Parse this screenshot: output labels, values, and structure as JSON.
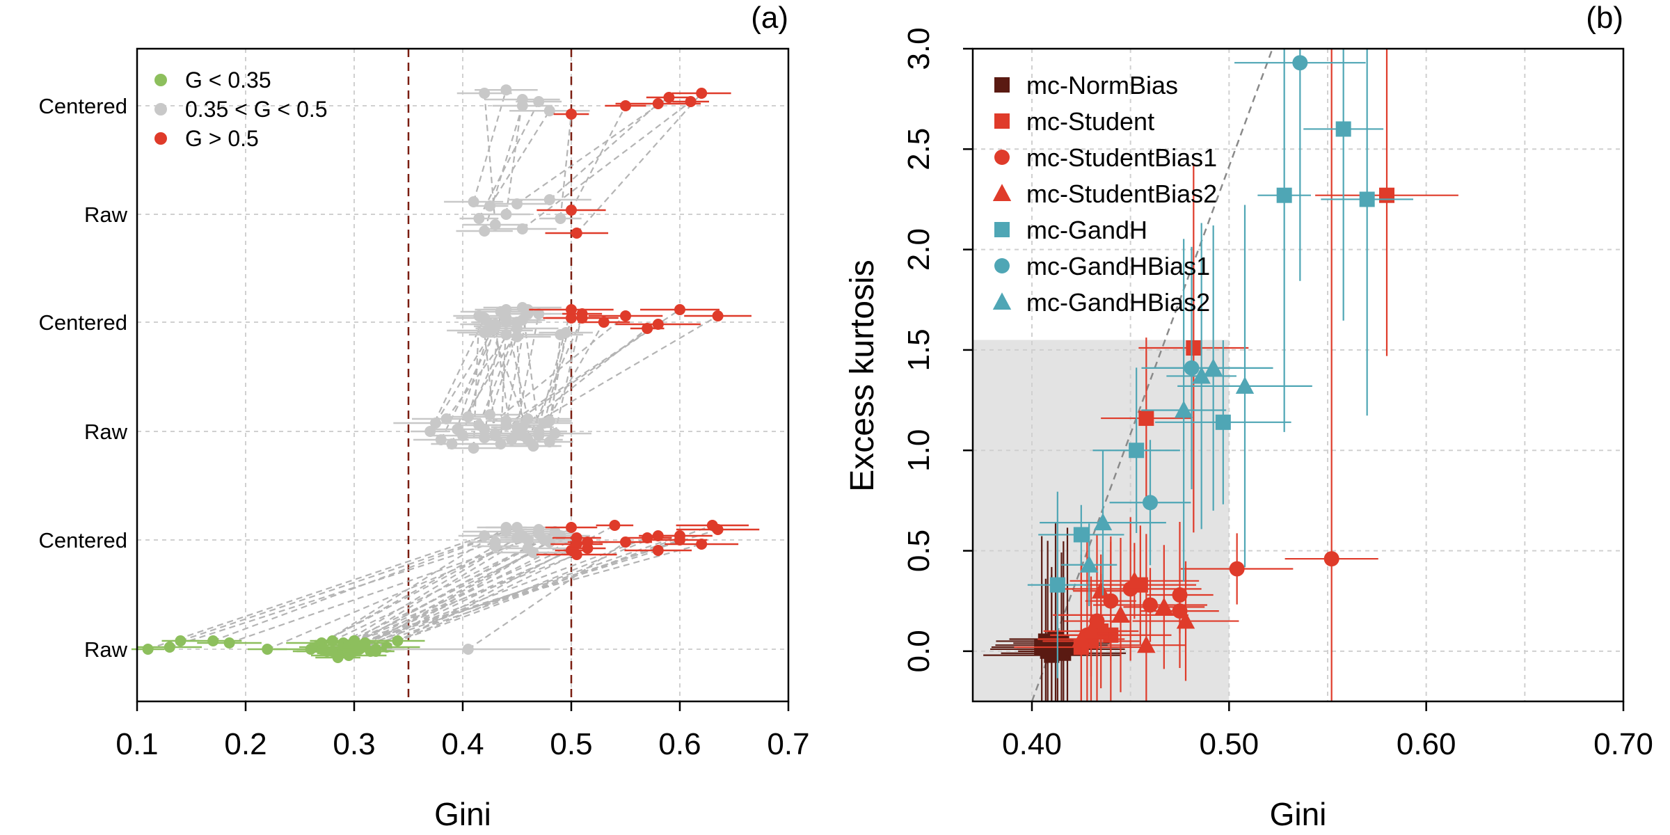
{
  "chart_data": [
    {
      "panel_label": "(a)",
      "type": "scatter",
      "xlabel": "Gini",
      "ylabel": "",
      "xlim": [
        0.1,
        0.7
      ],
      "xticks": [
        "0.1",
        "0.2",
        "0.3",
        "0.4",
        "0.5",
        "0.6",
        "0.7"
      ],
      "ytick_labels": [
        "Centered",
        "Raw",
        "Centered",
        "Raw",
        "Centered",
        "Raw"
      ],
      "vlines": [
        0.35,
        0.5
      ],
      "grid": true,
      "legend_position": "top-left",
      "legend": [
        {
          "label": "G < 0.35",
          "color": "#8dbf5d"
        },
        {
          "label": "0.35 < G < 0.5",
          "color": "#c8c8c8"
        },
        {
          "label": "G > 0.5",
          "color": "#df3b2a"
        }
      ],
      "groups": [
        {
          "rows": [
            "Raw",
            "Centered"
          ],
          "pairs": [
            [
              0.41,
              0.44,
              0.2,
              0.12
            ],
            [
              0.415,
              0.47,
              0.6,
              0.4
            ],
            [
              0.42,
              0.455,
              0.9,
              0.5
            ],
            [
              0.425,
              0.48,
              0.3,
              0.62
            ],
            [
              0.43,
              0.42,
              0.75,
              0.2
            ],
            [
              0.44,
              0.455,
              0.5,
              0.35
            ],
            [
              0.455,
              0.61,
              0.85,
              0.4
            ],
            [
              0.45,
              0.59,
              0.25,
              0.3
            ],
            [
              0.5,
              0.55,
              0.4,
              0.5
            ],
            [
              0.505,
              0.62,
              0.95,
              0.2
            ],
            [
              0.49,
              0.5,
              0.6,
              0.7
            ],
            [
              0.48,
              0.58,
              0.15,
              0.45
            ]
          ]
        },
        {
          "rows": [
            "Raw",
            "Centered"
          ],
          "pairs": [
            [
              0.37,
              0.42,
              0.5,
              0.4
            ],
            [
              0.375,
              0.43,
              0.3,
              0.6
            ],
            [
              0.38,
              0.44,
              0.7,
              0.2
            ],
            [
              0.385,
              0.45,
              0.2,
              0.5
            ],
            [
              0.39,
              0.425,
              0.8,
              0.7
            ],
            [
              0.395,
              0.46,
              0.45,
              0.3
            ],
            [
              0.4,
              0.43,
              0.6,
              0.55
            ],
            [
              0.405,
              0.44,
              0.15,
              0.8
            ],
            [
              0.41,
              0.415,
              0.9,
              0.35
            ],
            [
              0.415,
              0.45,
              0.35,
              0.65
            ],
            [
              0.42,
              0.435,
              0.65,
              0.25
            ],
            [
              0.425,
              0.455,
              0.1,
              0.45
            ],
            [
              0.43,
              0.42,
              0.55,
              0.75
            ],
            [
              0.435,
              0.44,
              0.8,
              0.5
            ],
            [
              0.44,
              0.46,
              0.25,
              0.2
            ],
            [
              0.445,
              0.43,
              0.7,
              0.6
            ],
            [
              0.45,
              0.47,
              0.4,
              0.3
            ],
            [
              0.455,
              0.45,
              0.6,
              0.85
            ],
            [
              0.46,
              0.44,
              0.2,
              0.4
            ],
            [
              0.465,
              0.425,
              0.85,
              0.55
            ],
            [
              0.47,
              0.455,
              0.5,
              0.15
            ],
            [
              0.475,
              0.5,
              0.3,
              0.4
            ],
            [
              0.48,
              0.49,
              0.75,
              0.8
            ],
            [
              0.485,
              0.51,
              0.55,
              0.3
            ],
            [
              0.42,
              0.55,
              0.45,
              0.35
            ],
            [
              0.43,
              0.58,
              0.6,
              0.55
            ],
            [
              0.44,
              0.6,
              0.35,
              0.2
            ],
            [
              0.45,
              0.635,
              0.55,
              0.35
            ],
            [
              0.455,
              0.57,
              0.4,
              0.65
            ],
            [
              0.47,
              0.53,
              0.6,
              0.5
            ],
            [
              0.48,
              0.495,
              0.25,
              0.75
            ],
            [
              0.46,
              0.51,
              0.7,
              0.4
            ],
            [
              0.465,
              0.5,
              0.85,
              0.2
            ]
          ]
        },
        {
          "rows": [
            "Raw",
            "Centered"
          ],
          "pairs": [
            [
              0.11,
              0.42,
              0.5,
              0.4
            ],
            [
              0.13,
              0.43,
              0.45,
              0.55
            ],
            [
              0.14,
              0.44,
              0.3,
              0.3
            ],
            [
              0.17,
              0.45,
              0.3,
              0.2
            ],
            [
              0.185,
              0.46,
              0.35,
              0.5
            ],
            [
              0.22,
              0.47,
              0.5,
              0.35
            ],
            [
              0.26,
              0.43,
              0.5,
              0.65
            ],
            [
              0.265,
              0.44,
              0.45,
              0.2
            ],
            [
              0.27,
              0.455,
              0.35,
              0.4
            ],
            [
              0.275,
              0.465,
              0.55,
              0.8
            ],
            [
              0.28,
              0.475,
              0.3,
              0.5
            ],
            [
              0.285,
              0.485,
              0.6,
              0.3
            ],
            [
              0.29,
              0.45,
              0.35,
              0.45
            ],
            [
              0.295,
              0.46,
              0.45,
              0.7
            ],
            [
              0.3,
              0.47,
              0.3,
              0.25
            ],
            [
              0.305,
              0.48,
              0.5,
              0.55
            ],
            [
              0.31,
              0.49,
              0.35,
              0.4
            ],
            [
              0.315,
              0.5,
              0.55,
              0.2
            ],
            [
              0.285,
              0.505,
              0.7,
              0.45
            ],
            [
              0.295,
              0.515,
              0.65,
              0.55
            ],
            [
              0.3,
              0.5,
              0.45,
              0.75
            ],
            [
              0.33,
              0.54,
              0.45,
              0.15
            ],
            [
              0.34,
              0.58,
              0.3,
              0.4
            ],
            [
              0.3,
              0.6,
              0.55,
              0.5
            ],
            [
              0.27,
              0.62,
              0.5,
              0.6
            ],
            [
              0.32,
              0.63,
              0.5,
              0.15
            ],
            [
              0.29,
              0.635,
              0.45,
              0.25
            ],
            [
              0.28,
              0.58,
              0.55,
              0.75
            ],
            [
              0.29,
              0.505,
              0.4,
              0.6
            ],
            [
              0.3,
              0.505,
              0.3,
              0.85
            ],
            [
              0.32,
              0.515,
              0.55,
              0.7
            ],
            [
              0.31,
              0.57,
              0.35,
              0.45
            ],
            [
              0.305,
              0.6,
              0.45,
              0.4
            ],
            [
              0.405,
              0.55,
              0.5,
              0.55
            ]
          ]
        }
      ]
    },
    {
      "panel_label": "(b)",
      "type": "scatter",
      "xlabel": "Gini",
      "ylabel": "Excess kurtosis",
      "xlim": [
        0.37,
        0.7
      ],
      "ylim": [
        -0.25,
        3.0
      ],
      "xticks": [
        "0.40",
        "0.50",
        "0.60",
        "0.70"
      ],
      "yticks": [
        "0.0",
        "0.5",
        "1.0",
        "1.5",
        "2.0",
        "2.5",
        "3.0"
      ],
      "shaded_region": {
        "x": [
          0.37,
          0.5
        ],
        "y": [
          -0.25,
          1.55
        ]
      },
      "grid": true,
      "legend_position": "top-left",
      "series": [
        {
          "name": "mc-NormBias",
          "color": "#5a1a12",
          "marker": "square",
          "points": [
            [
              0.405,
              0.02
            ],
            [
              0.407,
              0.05
            ],
            [
              0.408,
              0.0
            ],
            [
              0.41,
              0.03
            ],
            [
              0.41,
              -0.02
            ],
            [
              0.412,
              0.06
            ],
            [
              0.413,
              0.01
            ],
            [
              0.415,
              0.04
            ],
            [
              0.416,
              -0.01
            ],
            [
              0.418,
              0.02
            ]
          ]
        },
        {
          "name": "mc-Student",
          "color": "#df3b2a",
          "marker": "square",
          "points": [
            [
              0.482,
              1.51
            ],
            [
              0.458,
              1.16
            ],
            [
              0.58,
              2.27
            ],
            [
              0.455,
              0.33
            ],
            [
              0.44,
              0.08
            ],
            [
              0.43,
              0.05
            ],
            [
              0.425,
              0.02
            ],
            [
              0.435,
              0.1
            ]
          ]
        },
        {
          "name": "mc-StudentBias1",
          "color": "#df3b2a",
          "marker": "circle",
          "points": [
            [
              0.552,
              0.46
            ],
            [
              0.504,
              0.41
            ],
            [
              0.46,
              0.23
            ],
            [
              0.475,
              0.28
            ],
            [
              0.475,
              0.2
            ],
            [
              0.45,
              0.31
            ],
            [
              0.44,
              0.25
            ],
            [
              0.433,
              0.15
            ],
            [
              0.428,
              0.08
            ]
          ]
        },
        {
          "name": "mc-StudentBias2",
          "color": "#df3b2a",
          "marker": "triangle",
          "points": [
            [
              0.458,
              0.03
            ],
            [
              0.478,
              0.15
            ],
            [
              0.452,
              0.35
            ],
            [
              0.467,
              0.22
            ],
            [
              0.445,
              0.18
            ],
            [
              0.435,
              0.3
            ],
            [
              0.43,
              0.1
            ],
            [
              0.425,
              0.06
            ]
          ]
        },
        {
          "name": "mc-GandH",
          "color": "#4fa6b5",
          "marker": "square",
          "points": [
            [
              0.558,
              2.6
            ],
            [
              0.528,
              2.27
            ],
            [
              0.57,
              2.25
            ],
            [
              0.497,
              1.14
            ],
            [
              0.453,
              1.0
            ],
            [
              0.425,
              0.58
            ],
            [
              0.413,
              0.33
            ]
          ]
        },
        {
          "name": "mc-GandHBias1",
          "color": "#4fa6b5",
          "marker": "circle",
          "points": [
            [
              0.536,
              2.93
            ],
            [
              0.481,
              1.41
            ],
            [
              0.46,
              0.74
            ]
          ]
        },
        {
          "name": "mc-GandHBias2",
          "color": "#4fa6b5",
          "marker": "triangle",
          "points": [
            [
              0.492,
              1.41
            ],
            [
              0.486,
              1.37
            ],
            [
              0.508,
              1.32
            ],
            [
              0.477,
              1.2
            ],
            [
              0.436,
              0.64
            ],
            [
              0.429,
              0.43
            ]
          ]
        }
      ]
    }
  ]
}
